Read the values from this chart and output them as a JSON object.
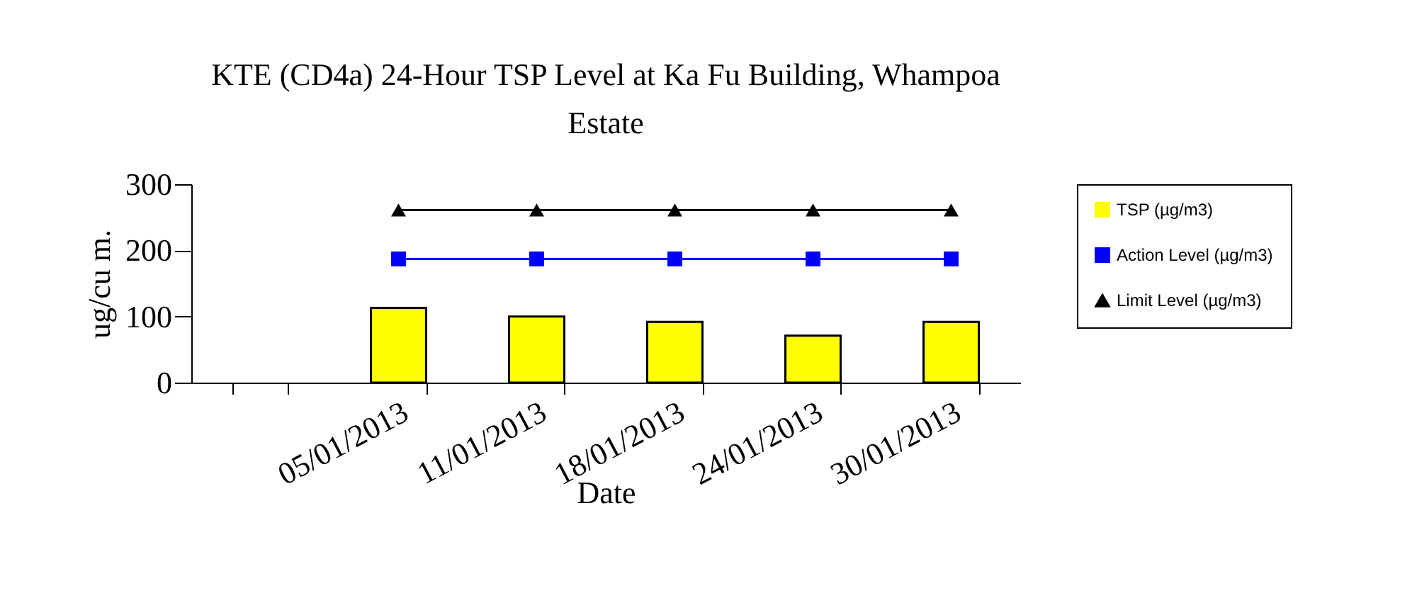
{
  "chart_data": {
    "type": "bar",
    "title": "KTE (CD4a) 24-Hour TSP Level at Ka Fu Building, Whampoa Estate",
    "xlabel": "Date",
    "ylabel": "ug/cu m.",
    "categories": [
      null,
      "05/01/2013",
      "11/01/2013",
      "18/01/2013",
      "24/01/2013",
      "30/01/2013"
    ],
    "series": [
      {
        "name": "TSP (µg/m3)",
        "color": "#ffff00",
        "values": [
          null,
          113,
          100,
          92,
          71,
          92
        ]
      },
      {
        "name": "Action Level (µg/m3)",
        "type": "line",
        "color": "#0000ff",
        "marker": "square",
        "values": [
          null,
          187,
          187,
          187,
          187,
          187
        ]
      },
      {
        "name": "Limit Level (µg/m3)",
        "type": "line",
        "color": "#000000",
        "marker": "triangle",
        "values": [
          null,
          261,
          261,
          261,
          261,
          261
        ]
      }
    ],
    "ylim": [
      0,
      300
    ],
    "yticks": [
      0,
      100,
      200,
      300
    ],
    "grid": false,
    "legend": "right"
  }
}
